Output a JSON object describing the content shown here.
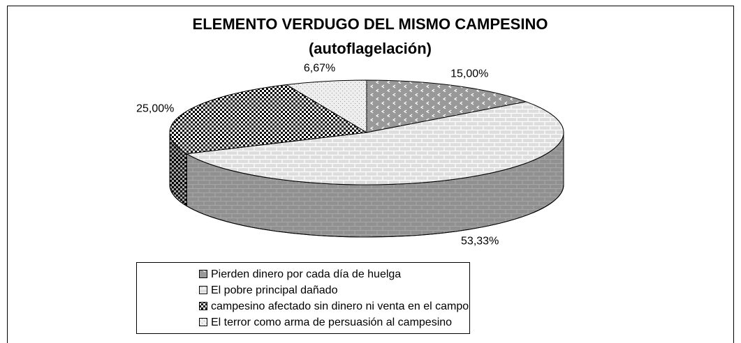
{
  "chart_data": {
    "type": "pie3d",
    "title": "ELEMENTO VERDUGO DEL MISMO CAMPESINO",
    "subtitle": "(autoflagelación)",
    "categories": [
      "Pierden dinero por cada día de huelga",
      "El pobre principal dañado",
      "campesino afectado sin dinero ni venta en el campo",
      "El terror como arma de persuasión al campesino"
    ],
    "values": [
      15.0,
      53.33,
      25.0,
      6.67
    ],
    "value_labels": [
      "15,00%",
      "53,33%",
      "25,00%",
      "6,67%"
    ],
    "colors": [
      "#999999",
      "#dddddd",
      "#000000",
      "#eeeeee"
    ],
    "legend": "bottom"
  }
}
